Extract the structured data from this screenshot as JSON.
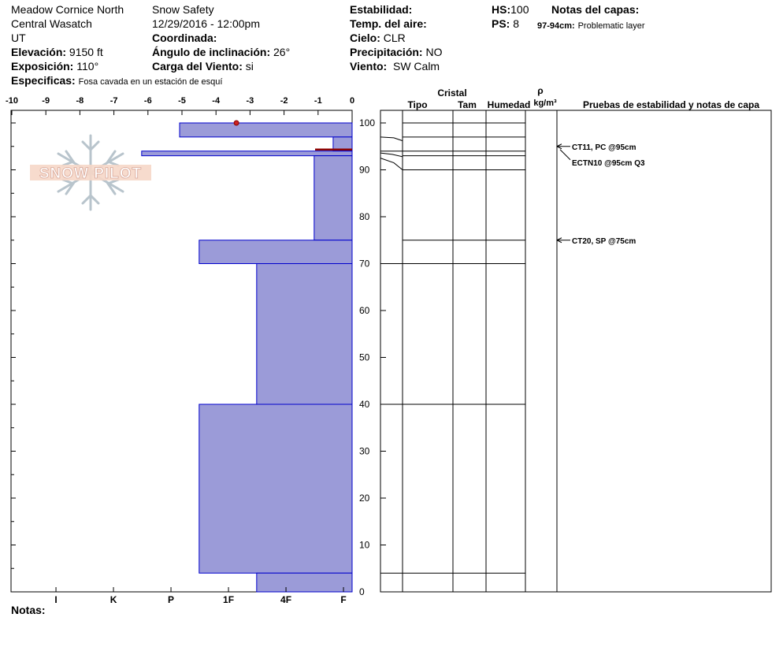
{
  "header": {
    "location": "Meadow Cornice North",
    "region": "Central Wasatch",
    "state": "UT",
    "elevation_label": "Elevación:",
    "elevation_value": "9150 ft",
    "aspect_label": "Exposición:",
    "aspect_value": "110°",
    "specifics_label": "Especificas:",
    "specifics_value": "Fosa cavada en un estación de esquí",
    "observer": "Snow Safety",
    "datetime": "12/29/2016 - 12:00pm",
    "coord_label": "Coordinada:",
    "coord_value": "",
    "slope_label": "Ángulo de inclinación:",
    "slope_value": "26°",
    "wind_load_label": "Carga del Viento:",
    "wind_load_value": "si",
    "stability_label": "Estabilidad:",
    "stability_value": "",
    "air_temp_label": "Temp. del aire:",
    "air_temp_value": "",
    "sky_label": "Cielo:",
    "sky_value": "CLR",
    "precip_label": "Precipitación:",
    "precip_value": "NO",
    "wind_label": "Viento:",
    "wind_value": "SW Calm",
    "hs_label": "HS:",
    "hs_value": "100",
    "ps_label": "PS:",
    "ps_value": "8",
    "layer_notes_label": "Notas del capas:",
    "layer_note_range": "97-94cm:",
    "layer_note_text": "Problematic layer",
    "notes_label": "Notas:"
  },
  "logo": {
    "text": "SNOW PILOT",
    "icon": "snowflake-icon"
  },
  "colors": {
    "layer_fill": "#9b9bd8",
    "layer_stroke": "#0000cc",
    "marker": "#cc2222",
    "problem_line": "#8b0000"
  },
  "chart_data": {
    "type": "bar",
    "temp_axis": {
      "ticks": [
        "-10",
        "-9",
        "-8",
        "-7",
        "-6",
        "-5",
        "-4",
        "-3",
        "-2",
        "-1",
        "0"
      ],
      "range": [
        -10,
        0
      ]
    },
    "height_axis": {
      "ticks": [
        "100",
        "90",
        "80",
        "70",
        "60",
        "50",
        "40",
        "30",
        "20",
        "10",
        "0"
      ],
      "range": [
        0,
        102
      ]
    },
    "hardness_axis": [
      "I",
      "K",
      "P",
      "1F",
      "4F",
      "F"
    ],
    "hardness_scale_max": 6,
    "layers": [
      {
        "top": 100,
        "bottom": 97,
        "hardness": 3
      },
      {
        "top": 97,
        "bottom": 94,
        "hardness": 0.33
      },
      {
        "top": 94,
        "bottom": 93,
        "hardness": 3.66
      },
      {
        "top": 93,
        "bottom": 75,
        "hardness": 0.66
      },
      {
        "top": 75,
        "bottom": 70,
        "hardness": 2.66
      },
      {
        "top": 70,
        "bottom": 40,
        "hardness": 1.66
      },
      {
        "top": 40,
        "bottom": 4,
        "hardness": 2.66
      },
      {
        "top": 4,
        "bottom": 0,
        "hardness": 1.66
      }
    ],
    "temperature_points": [
      {
        "depth": 100,
        "temp": -3.4
      }
    ],
    "problem_layer_depth": 94,
    "layer_boundaries": [
      100,
      97,
      94,
      93,
      90,
      75,
      70,
      40,
      4
    ],
    "right_headers": {
      "crystal": "Cristal",
      "type": "Tipo",
      "size": "Tam",
      "moisture": "Humedad",
      "rho": "ρ",
      "density": "kg/m³",
      "tests": "Pruebas de estabilidad y notas de capa"
    },
    "tests": [
      {
        "label": "CT11, PC @95cm",
        "depth": 95
      },
      {
        "label": "ECTN10 @95cm  Q3",
        "depth": 95
      },
      {
        "label": "CT20, SP @75cm",
        "depth": 75
      }
    ]
  }
}
